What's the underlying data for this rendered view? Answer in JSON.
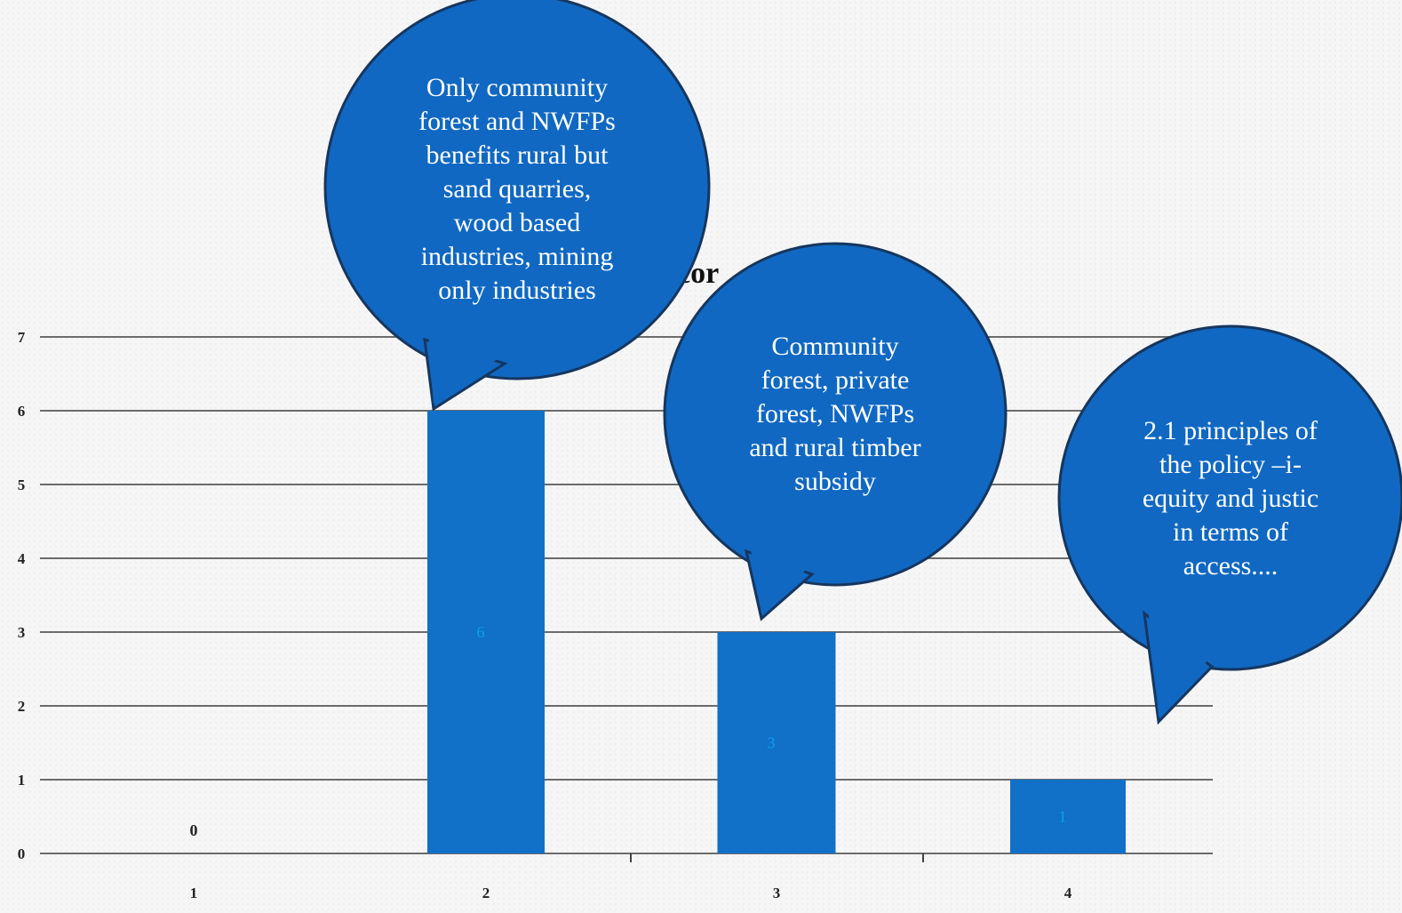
{
  "chart_data": {
    "type": "bar",
    "title_visible_fragment": "cor",
    "categories": [
      "1",
      "2",
      "3",
      "4"
    ],
    "values": [
      0,
      6,
      3,
      1
    ],
    "data_labels": [
      "0",
      "6",
      "3",
      "1"
    ],
    "yticks": [
      "0",
      "1",
      "2",
      "3",
      "4",
      "5",
      "6",
      "7"
    ],
    "ylim": [
      0,
      7
    ],
    "grid": true,
    "legend": "none",
    "colors": {
      "bar": "#1170c8",
      "callout_fill": "#1068c2",
      "callout_stroke": "#16365e",
      "label_on_bar": "#0aa0f0",
      "label_outside": "#222222"
    }
  },
  "callouts": [
    {
      "id": "callout-1",
      "lines": [
        "Only community",
        "forest and NWFPs",
        "benefits rural but",
        "sand quarries,",
        "wood based",
        "industries, mining",
        "only industries"
      ]
    },
    {
      "id": "callout-2",
      "lines": [
        "Community",
        "forest, private",
        "forest, NWFPs",
        "and rural timber",
        "subsidy"
      ]
    },
    {
      "id": "callout-3",
      "lines": [
        "2.1 principles of",
        "the policy –i-",
        "equity and justic",
        "in terms of",
        "access...."
      ]
    }
  ]
}
